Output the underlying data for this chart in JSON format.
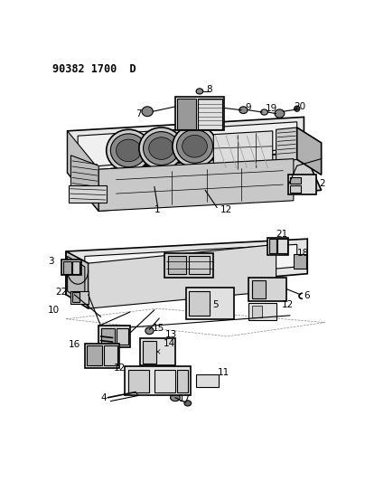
{
  "title": "90382 1700  D",
  "bg_color": "#ffffff",
  "line_color": "#000000",
  "figsize": [
    4.04,
    5.33
  ],
  "dpi": 100,
  "gray1": "#888888",
  "gray2": "#aaaaaa",
  "gray3": "#cccccc",
  "gray4": "#555555"
}
